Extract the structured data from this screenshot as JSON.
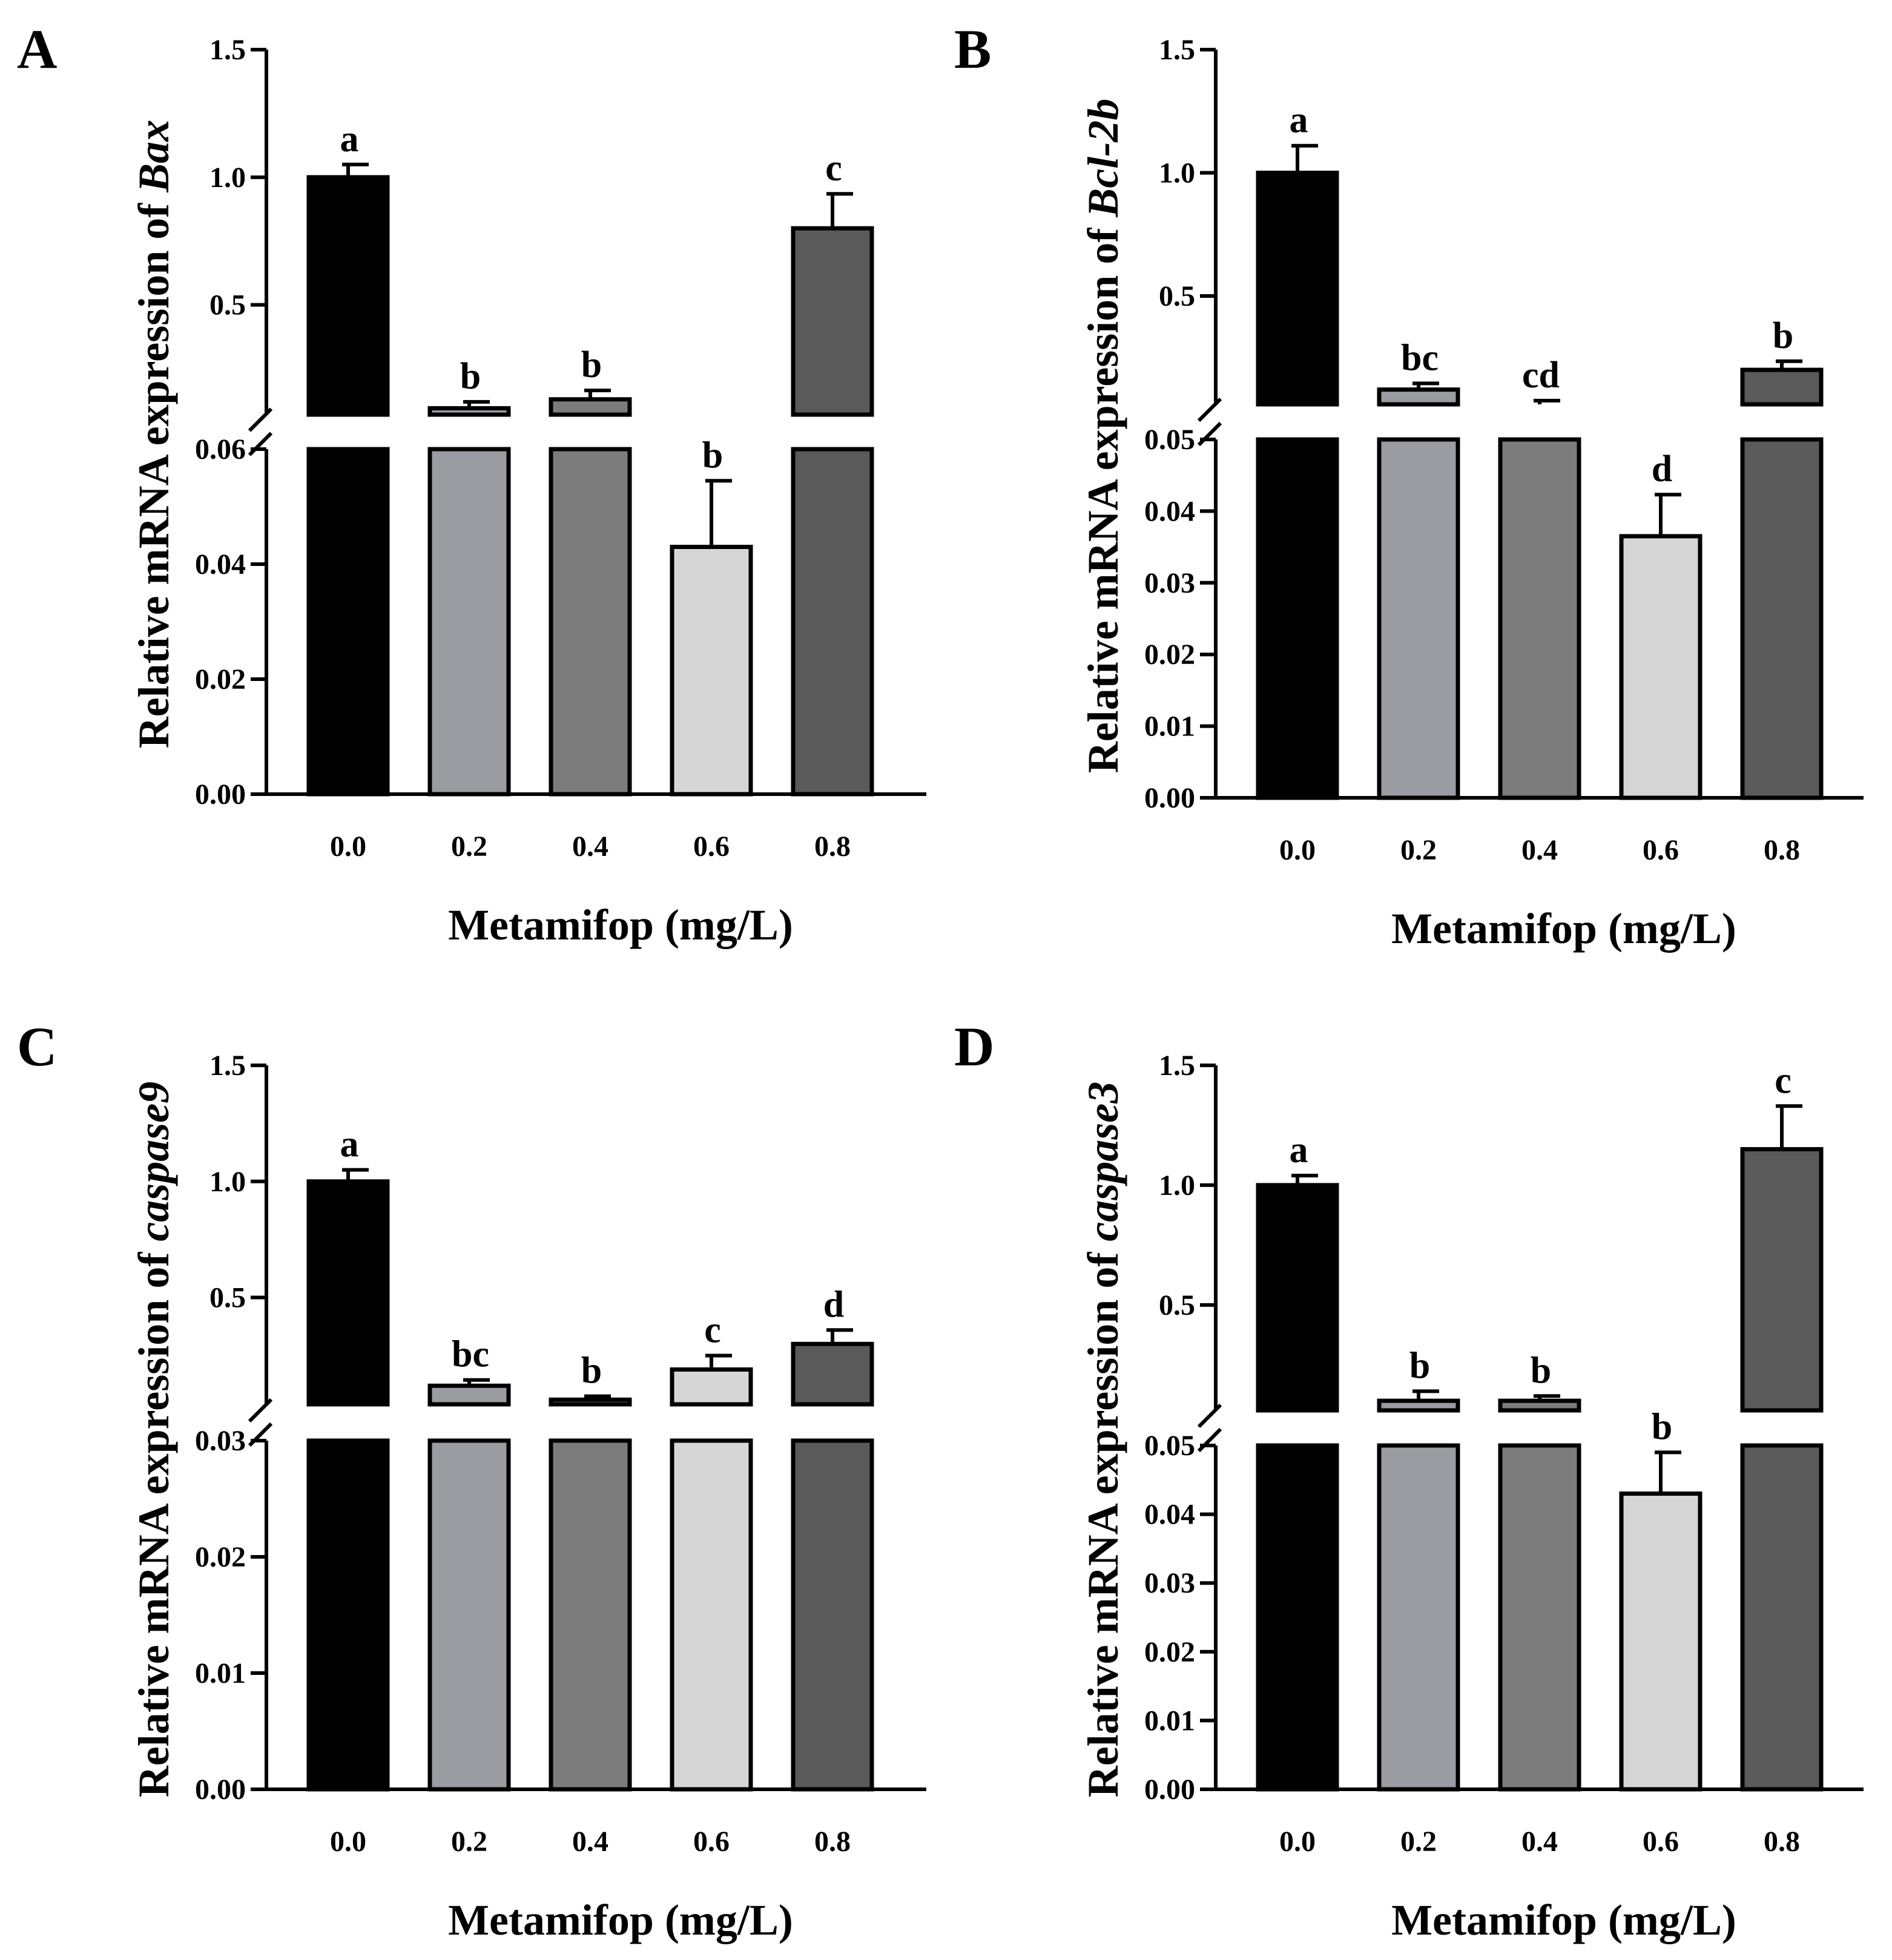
{
  "figure": {
    "break_glyph": "//",
    "styles": {
      "bar_colors": [
        "#000000",
        "#9b9ba2",
        "#7c7c7c",
        "#d6d6d6",
        "#5a5a5a"
      ],
      "stroke_color": "#000000"
    }
  },
  "chart_data": [
    {
      "panel": "A",
      "type": "bar",
      "title": "",
      "ylabel_prefix": "Relative mRNA expression of ",
      "gene": "Bax",
      "xlabel": "Metamifop (mg/L)",
      "categories": [
        "0.0",
        "0.2",
        "0.4",
        "0.6",
        "0.8"
      ],
      "values": [
        1.0,
        0.095,
        0.13,
        0.043,
        0.8
      ],
      "errors": [
        0.05,
        0.025,
        0.035,
        0.0115,
        0.135
      ],
      "significance": [
        "a",
        "b",
        "b",
        "b",
        "c"
      ],
      "broken_axis": true,
      "lower_segment": {
        "ylim": [
          0,
          0.06
        ],
        "ticks": [
          "0.00",
          "0.02",
          "0.04",
          "0.06"
        ]
      },
      "upper_segment": {
        "ylim": [
          0.07,
          1.5
        ],
        "ticks": [
          "0.5",
          "1.0",
          "1.5"
        ]
      }
    },
    {
      "panel": "B",
      "type": "bar",
      "title": "",
      "ylabel_prefix": "Relative mRNA expression of ",
      "gene": "Bcl-2b",
      "xlabel": "Metamifop (mg/L)",
      "categories": [
        "0.0",
        "0.2",
        "0.4",
        "0.6",
        "0.8"
      ],
      "values": [
        1.0,
        0.12,
        0.06,
        0.0365,
        0.2
      ],
      "errors": [
        0.11,
        0.025,
        0.015,
        0.0058,
        0.035
      ],
      "significance": [
        "a",
        "bc",
        "cd",
        "d",
        "b"
      ],
      "broken_axis": true,
      "lower_segment": {
        "ylim": [
          0,
          0.05
        ],
        "ticks": [
          "0.00",
          "0.01",
          "0.02",
          "0.03",
          "0.04",
          "0.05"
        ]
      },
      "upper_segment": {
        "ylim": [
          0.06,
          1.5
        ],
        "ticks": [
          "0.5",
          "1.0",
          "1.5"
        ]
      }
    },
    {
      "panel": "C",
      "type": "bar",
      "title": "",
      "ylabel_prefix": "Relative mRNA expression of ",
      "gene": "caspase9",
      "xlabel": "Metamifop (mg/L)",
      "categories": [
        "0.0",
        "0.2",
        "0.4",
        "0.6",
        "0.8"
      ],
      "values": [
        1.0,
        0.12,
        0.06,
        0.19,
        0.3
      ],
      "errors": [
        0.05,
        0.025,
        0.015,
        0.06,
        0.06
      ],
      "significance": [
        "a",
        "bc",
        "b",
        "c",
        "d"
      ],
      "broken_axis": true,
      "lower_segment": {
        "ylim": [
          0,
          0.03
        ],
        "ticks": [
          "0.00",
          "0.01",
          "0.02",
          "0.03"
        ]
      },
      "upper_segment": {
        "ylim": [
          0.04,
          1.5
        ],
        "ticks": [
          "0.5",
          "1.0",
          "1.5"
        ]
      }
    },
    {
      "panel": "D",
      "type": "bar",
      "title": "",
      "ylabel_prefix": "Relative mRNA expression of ",
      "gene": "caspase3",
      "xlabel": "Metamifop (mg/L)",
      "categories": [
        "0.0",
        "0.2",
        "0.4",
        "0.6",
        "0.8"
      ],
      "values": [
        1.0,
        0.1,
        0.1,
        0.043,
        1.15
      ],
      "errors": [
        0.04,
        0.04,
        0.02,
        0.006,
        0.18
      ],
      "significance": [
        "a",
        "b",
        "b",
        "b",
        "c"
      ],
      "broken_axis": true,
      "lower_segment": {
        "ylim": [
          0,
          0.05
        ],
        "ticks": [
          "0.00",
          "0.01",
          "0.02",
          "0.03",
          "0.04",
          "0.05"
        ]
      },
      "upper_segment": {
        "ylim": [
          0.06,
          1.5
        ],
        "ticks": [
          "0.5",
          "1.0",
          "1.5"
        ]
      }
    }
  ]
}
